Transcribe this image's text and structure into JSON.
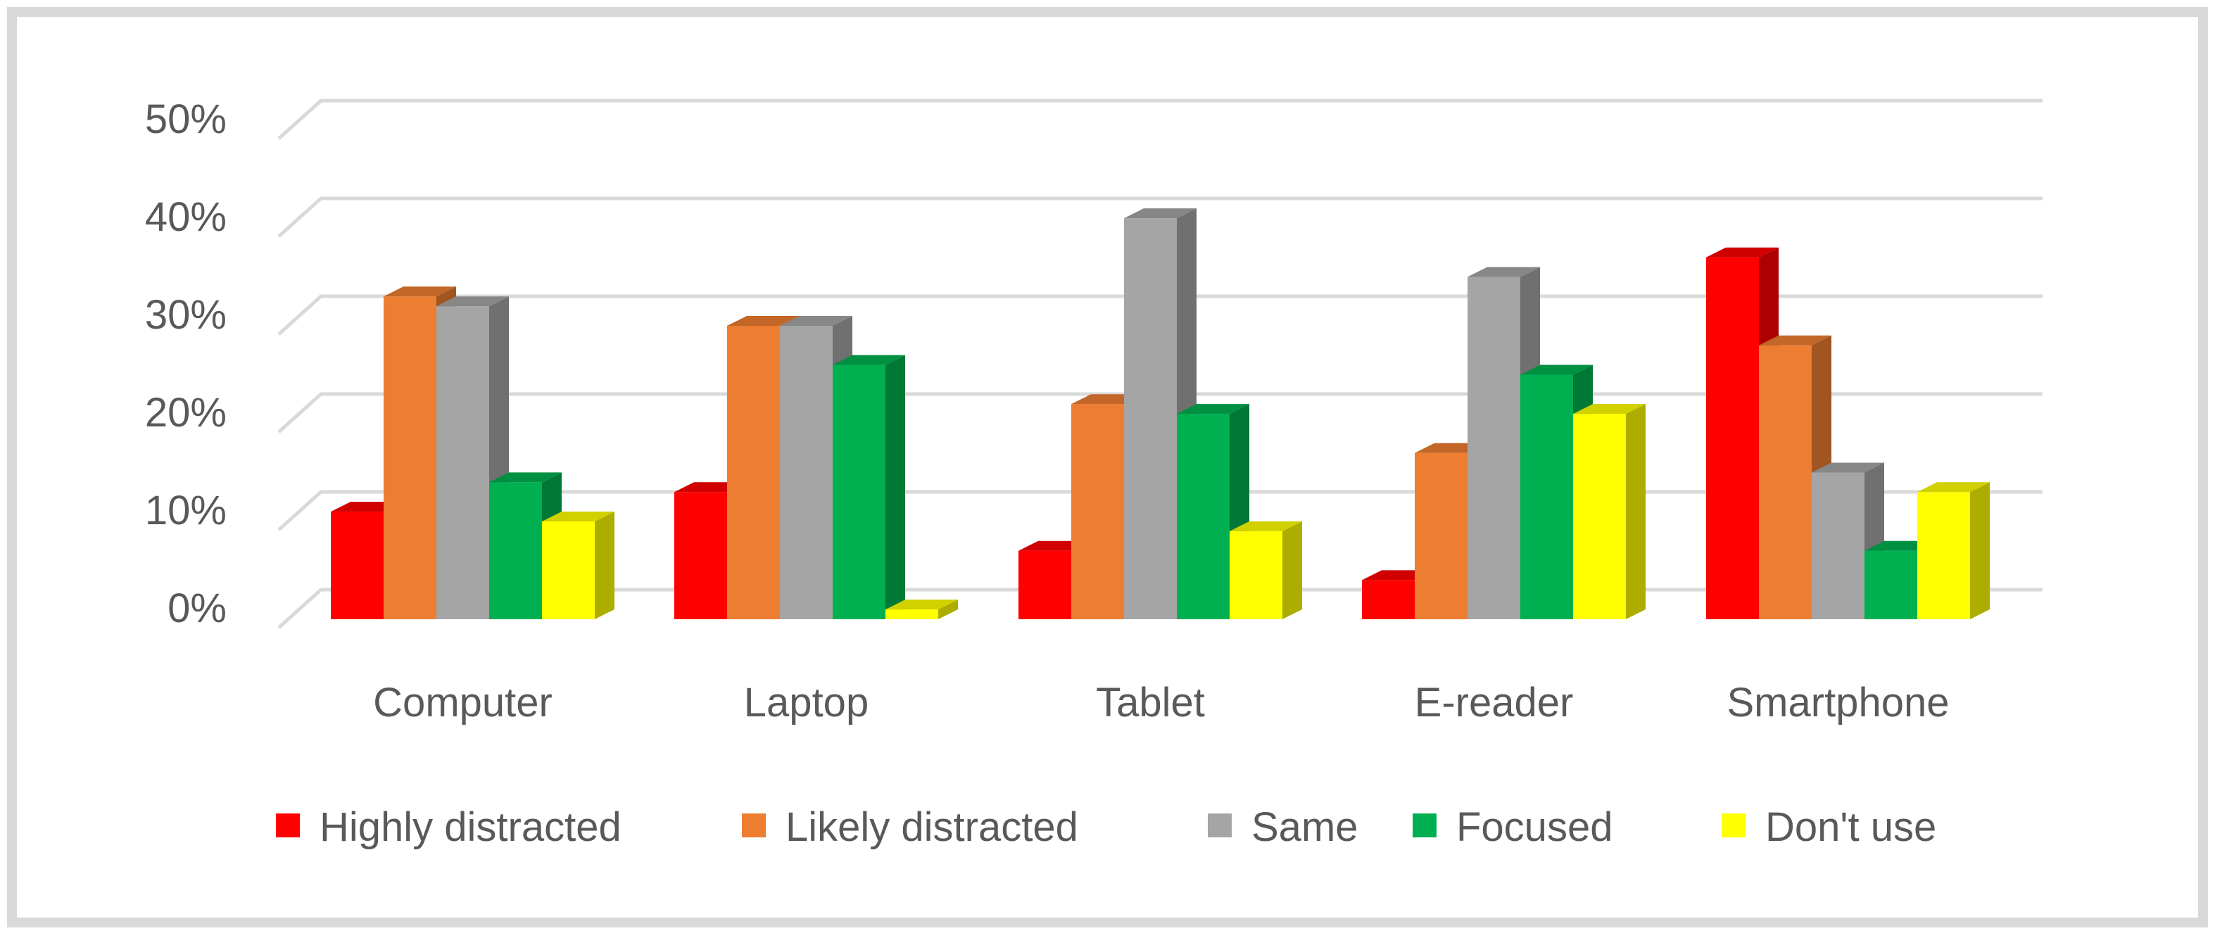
{
  "colors": {
    "frame": "#d9d9d9",
    "gridline": "#d9d9d9",
    "text": "#595959",
    "background": "#ffffff"
  },
  "chart_data": {
    "type": "bar",
    "style": "3d-clustered-column",
    "title": "",
    "xlabel": "",
    "ylabel": "",
    "categories": [
      "Computer",
      "Laptop",
      "Tablet",
      "E-reader",
      "Smartphone"
    ],
    "y_ticks": [
      "0%",
      "10%",
      "20%",
      "30%",
      "40%",
      "50%"
    ],
    "ylim": [
      0,
      50
    ],
    "y_unit": "%",
    "grid": true,
    "legend_position": "bottom",
    "series": [
      {
        "name": "Highly distracted",
        "color": "#ff0000",
        "values": [
          11,
          13,
          7,
          4,
          37
        ]
      },
      {
        "name": "Likely distracted",
        "color": "#ed7d31",
        "values": [
          33,
          30,
          22,
          17,
          28
        ]
      },
      {
        "name": "Same",
        "color": "#a5a5a5",
        "values": [
          32,
          30,
          41,
          35,
          15
        ]
      },
      {
        "name": "Focused",
        "color": "#00b050",
        "values": [
          14,
          26,
          21,
          25,
          7
        ]
      },
      {
        "name": "Don't use",
        "color": "#ffff00",
        "values": [
          10,
          1,
          9,
          21,
          13
        ]
      }
    ]
  }
}
